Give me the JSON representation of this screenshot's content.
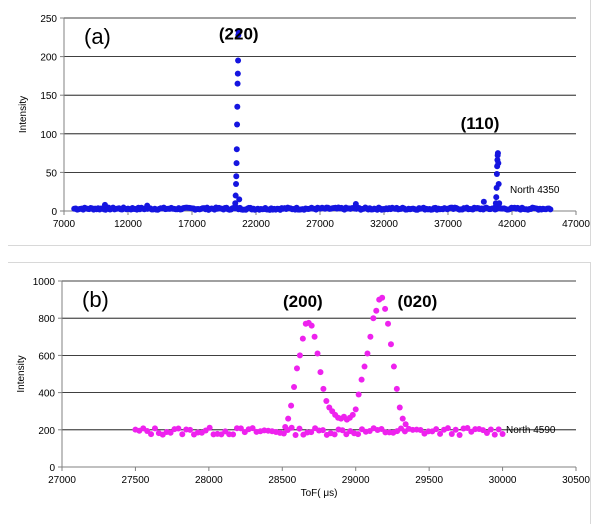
{
  "chart_data": [
    {
      "type": "scatter",
      "panel_label": "(a)",
      "ylabel": "Intensity",
      "xlabel": "",
      "xlim": [
        7000,
        47000
      ],
      "ylim": [
        0,
        250
      ],
      "x_ticks": [
        7000,
        12000,
        17000,
        22000,
        27000,
        32000,
        37000,
        42000,
        47000
      ],
      "y_ticks": [
        0,
        50,
        100,
        150,
        200,
        250
      ],
      "grid": "horizontal",
      "marker_color": "#1515e0",
      "series": [
        {
          "name": "North 4350",
          "x": [
            20350,
            20380,
            20410,
            20440,
            20460,
            20480,
            20500,
            20520,
            20540,
            20560,
            20580,
            20600,
            20620,
            20650,
            20690,
            40700,
            40740,
            40770,
            40800,
            40820,
            40840,
            40860,
            40880,
            40900,
            40930,
            40960,
            41000,
            41050,
            10200,
            13500,
            29800,
            39800
          ],
          "y": [
            5,
            10,
            20,
            35,
            45,
            62,
            80,
            112,
            135,
            165,
            178,
            195,
            228,
            232,
            15,
            5,
            10,
            18,
            30,
            48,
            58,
            66,
            72,
            75,
            62,
            35,
            10,
            4,
            8,
            7,
            9,
            12
          ],
          "baseline": {
            "x_start": 7800,
            "x_end": 45000,
            "y": 3,
            "count": 320
          }
        }
      ],
      "annotations": [
        {
          "text": "(220)",
          "x": 20650,
          "y": 222
        },
        {
          "text": "(110)",
          "x": 39500,
          "y": 106
        }
      ]
    },
    {
      "type": "scatter",
      "panel_label": "(b)",
      "ylabel": "Intensity",
      "xlabel": "ToF( μs)",
      "xlim": [
        27000,
        30500
      ],
      "ylim": [
        0,
        1000
      ],
      "x_ticks": [
        27000,
        27500,
        28000,
        28500,
        29000,
        29500,
        30000,
        30500
      ],
      "y_ticks": [
        0,
        200,
        400,
        600,
        800,
        1000
      ],
      "grid": "horizontal",
      "marker_color": "#ee22ee",
      "series": [
        {
          "name": "North 4590",
          "x": [
            28520,
            28540,
            28560,
            28580,
            28600,
            28620,
            28640,
            28660,
            28680,
            28700,
            28720,
            28740,
            28760,
            28780,
            28800,
            28820,
            28840,
            28860,
            28880,
            28900,
            28920,
            28940,
            28960,
            28980,
            29000,
            29020,
            29040,
            29060,
            29080,
            29100,
            29120,
            29140,
            29160,
            29180,
            29200,
            29220,
            29240,
            29260,
            29280,
            29300,
            29320,
            29340
          ],
          "y": [
            215,
            260,
            330,
            430,
            530,
            600,
            690,
            770,
            775,
            760,
            700,
            610,
            510,
            420,
            355,
            320,
            300,
            280,
            265,
            260,
            270,
            255,
            265,
            280,
            310,
            390,
            470,
            540,
            610,
            700,
            800,
            840,
            900,
            910,
            850,
            770,
            660,
            540,
            420,
            320,
            260,
            230
          ],
          "baseline": {
            "x_start": 27500,
            "x_end": 30000,
            "y": 192,
            "count": 95
          }
        }
      ],
      "annotations": [
        {
          "text": "(200)",
          "x": 28640,
          "y": 860
        },
        {
          "text": "(020)",
          "x": 29420,
          "y": 860
        }
      ]
    }
  ]
}
